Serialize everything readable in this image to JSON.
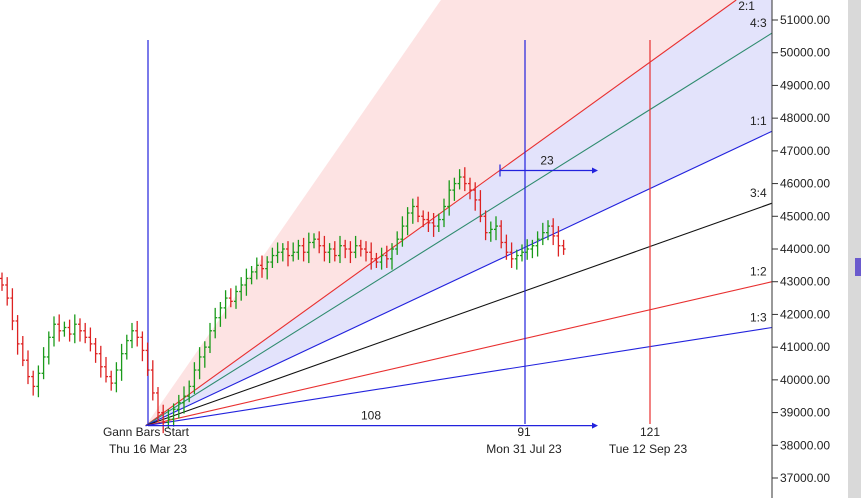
{
  "chart_data": {
    "type": "candlestick",
    "title": "",
    "y_axis": {
      "position": "right",
      "min": 36800,
      "max": 51300,
      "ticks": [
        37000,
        38000,
        39000,
        40000,
        41000,
        42000,
        43000,
        44000,
        45000,
        46000,
        47000,
        48000,
        49000,
        50000,
        51000
      ],
      "tick_labels": [
        "37000.00",
        "38000.00",
        "39000.00",
        "40000.00",
        "41000.00",
        "42000.00",
        "43000.00",
        "44000.00",
        "45000.00",
        "46000.00",
        "47000.00",
        "48000.00",
        "49000.00",
        "50000.00",
        "51000.00"
      ]
    },
    "gann_fan": {
      "origin_label_line1": "Gann Bars Start",
      "origin_label_line2": "Thu 16 Mar 23",
      "origin_price": 38600,
      "fills": [
        "#fde3e3",
        "#e3e3fb"
      ],
      "lines": [
        {
          "label": "2:1",
          "color": "#e83030",
          "end_price": 52400
        },
        {
          "label": "4:3",
          "color": "#2e8b6e",
          "end_price": 50600
        },
        {
          "label": "1:1",
          "color": "#2222dd",
          "end_price": 47600
        },
        {
          "label": "3:4",
          "color": "#111111",
          "end_price": 45400
        },
        {
          "label": "1:2",
          "color": "#e83030",
          "end_price": 43000
        },
        {
          "label": "1:3",
          "color": "#2222dd",
          "end_price": 41600
        }
      ]
    },
    "vertical_markers": [
      {
        "date": "Thu 16 Mar 23",
        "bar_count": "",
        "color": "#2222dd"
      },
      {
        "date": "Mon 31 Jul 23",
        "bar_count": "91",
        "color": "#2222dd"
      },
      {
        "date": "Tue 12 Sep 23",
        "bar_count": "121",
        "color": "#e83030"
      }
    ],
    "measurements": [
      {
        "label": "108",
        "type": "bars",
        "start_price": 38600,
        "color": "#2222dd"
      },
      {
        "label": "23",
        "type": "bars",
        "start_price": 46400,
        "color": "#2222dd"
      }
    ],
    "price_series": {
      "up_color": "#1a9a1a",
      "down_color": "#dd2222",
      "closes": [
        42900,
        42500,
        41800,
        41100,
        40600,
        40100,
        39800,
        40200,
        40700,
        41300,
        41700,
        41500,
        41600,
        41400,
        41700,
        41500,
        41300,
        41100,
        40800,
        40400,
        40100,
        39900,
        40300,
        40800,
        41200,
        41500,
        41300,
        40900,
        40300,
        39600,
        39000,
        38700,
        38800,
        39100,
        39300,
        39500,
        39800,
        40300,
        40700,
        41000,
        41500,
        41900,
        42200,
        42500,
        42400,
        42700,
        42900,
        43100,
        43300,
        43500,
        43400,
        43600,
        43800,
        43900,
        44000,
        43800,
        43900,
        44100,
        43900,
        44200,
        44300,
        44100,
        43900,
        44000,
        43800,
        44100,
        44000,
        43900,
        44100,
        44000,
        43900,
        43700,
        43600,
        43800,
        43700,
        44000,
        44300,
        44700,
        45100,
        45300,
        45000,
        44900,
        44800,
        44700,
        44900,
        45300,
        45800,
        46000,
        46200,
        46000,
        45800,
        45500,
        45000,
        44500,
        44600,
        44700,
        44200,
        43900,
        43700,
        43800,
        43900,
        44000,
        44100,
        44300,
        44500,
        44700,
        44400,
        44100,
        44000
      ]
    }
  }
}
